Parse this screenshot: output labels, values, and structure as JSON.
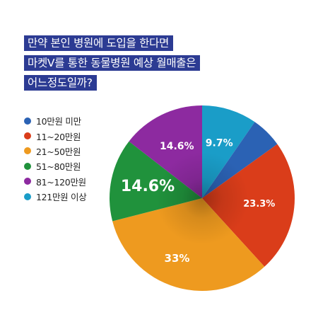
{
  "title": {
    "lines": [
      "만약 본인 병원에 도입을 한다면",
      "마켓V를 통한 동물병원 예상 월매출은",
      "어느정도일까?"
    ]
  },
  "chart_data": {
    "type": "pie",
    "title": "",
    "legend_placement": "left",
    "slices": [
      {
        "label": "10만원 미만",
        "value": 5.5,
        "display": "",
        "color": "#2b62b4"
      },
      {
        "label": "11~20만원",
        "value": 23.3,
        "display": "23.3%",
        "color": "#da3d1a"
      },
      {
        "label": "21~50만원",
        "value": 33,
        "display": "33%",
        "color": "#ee9a1f"
      },
      {
        "label": "51~80만원",
        "value": 14.6,
        "display": "14.6%",
        "color": "#20923c"
      },
      {
        "label": "81~120만원",
        "value": 14.6,
        "display": "14.6%",
        "color": "#8d2aa0"
      },
      {
        "label": "121만원 이상",
        "value": 9.7,
        "display": "9.7%",
        "color": "#1a9dc8"
      }
    ]
  }
}
